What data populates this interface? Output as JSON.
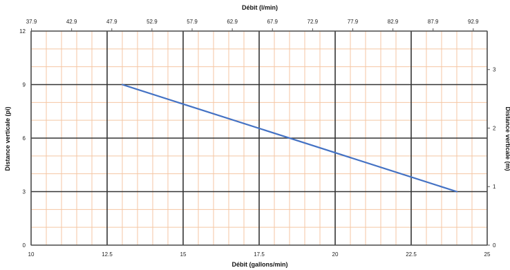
{
  "chart_data": {
    "type": "line",
    "title": "",
    "xlabel_bottom": "Débit (gallons/min)",
    "xlabel_top": "Débit (l/min)",
    "ylabel_left": "Distance verticale (pi)",
    "ylabel_right": "Distance verticale (m)",
    "xlim": [
      10,
      25
    ],
    "ylim": [
      0,
      12
    ],
    "x_ticks_bottom": [
      "10",
      "12.5",
      "15",
      "17.5",
      "20",
      "22.5",
      "25"
    ],
    "x_ticks_top": [
      "37.9",
      "42.9",
      "47.9",
      "52.9",
      "57.9",
      "62.9",
      "67.9",
      "72.9",
      "77.9",
      "82.9",
      "87.9",
      "92.9"
    ],
    "y_ticks_left": [
      "0",
      "3",
      "6",
      "9",
      "12"
    ],
    "y_ticks_right": [
      "0",
      "1",
      "2",
      "3"
    ],
    "grid": true,
    "series": [
      {
        "x": [
          13.0,
          24.0
        ],
        "y": [
          9.0,
          3.0
        ],
        "color": "#4472C4"
      }
    ],
    "colors": {
      "major_grid": "#333333",
      "minor_grid": "#f4c6a3",
      "series": "#4472C4"
    }
  }
}
